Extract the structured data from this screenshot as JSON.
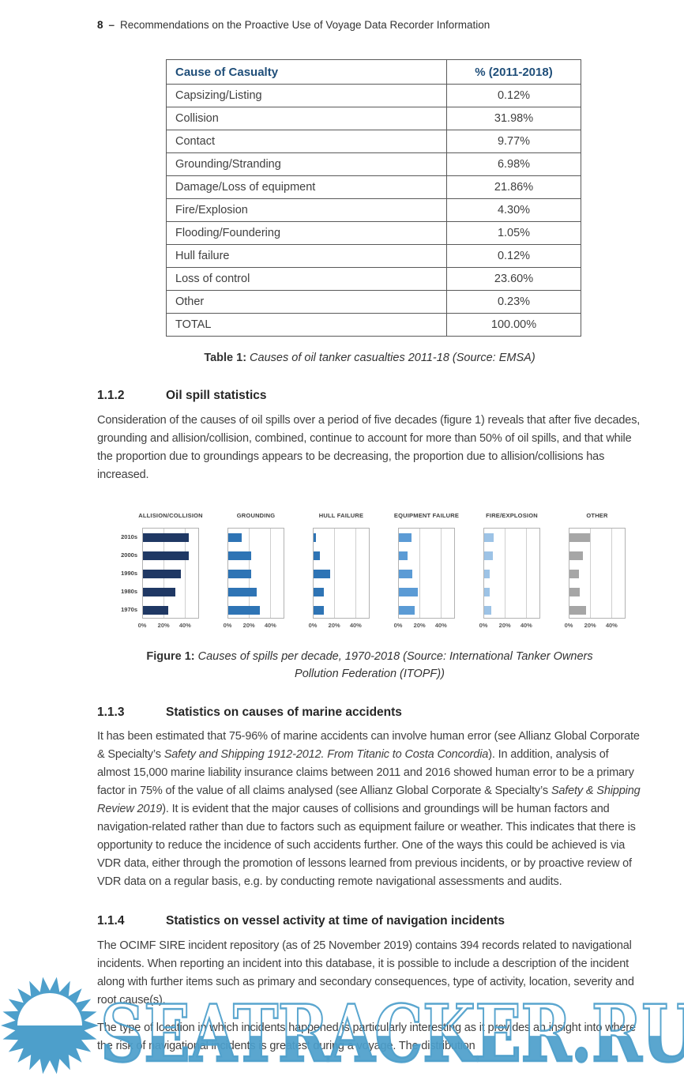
{
  "page": {
    "number": "8",
    "dash": "–",
    "running_title": "Recommendations on the Proactive Use of Voyage Data Recorder Information"
  },
  "table1": {
    "headers": [
      "Cause of Casualty",
      "% (2011-2018)"
    ],
    "header_color": "#1f4e79",
    "rows": [
      [
        "Capsizing/Listing",
        "0.12%"
      ],
      [
        "Collision",
        "31.98%"
      ],
      [
        "Contact",
        "9.77%"
      ],
      [
        "Grounding/Stranding",
        "6.98%"
      ],
      [
        "Damage/Loss of equipment",
        "21.86%"
      ],
      [
        "Fire/Explosion",
        "4.30%"
      ],
      [
        "Flooding/Foundering",
        "1.05%"
      ],
      [
        "Hull failure",
        "0.12%"
      ],
      [
        "Loss of control",
        "23.60%"
      ],
      [
        "Other",
        "0.23%"
      ],
      [
        "TOTAL",
        "100.00%"
      ]
    ],
    "caption_label": "Table 1:",
    "caption_text": " Causes of oil tanker casualties 2011-18 (Source: EMSA)"
  },
  "sections": {
    "s112": {
      "number": "1.1.2",
      "title": "Oil spill statistics",
      "paragraph": "Consideration of the causes of oil spills over a period of five decades (figure 1) reveals that after five decades, grounding and allision/collision, combined, continue to account for more than 50% of oil spills, and that while the proportion due to groundings appears to be decreasing, the proportion due to allision/collisions has increased."
    },
    "s113": {
      "number": "1.1.3",
      "title": "Statistics on causes of marine accidents",
      "paragraph_segments": [
        {
          "text": "It has been estimated that 75-96% of marine accidents can involve human error (see Allianz Global Corporate & Specialty’s ",
          "italic": false
        },
        {
          "text": "Safety and Shipping 1912-2012. From Titanic to Costa Concordia",
          "italic": true
        },
        {
          "text": "). In addition, analysis of almost 15,000 marine liability insurance claims between 2011 and 2016 showed human error to be a primary factor in 75% of the value of all claims analysed (see Allianz Global Corporate & Specialty’s ",
          "italic": false
        },
        {
          "text": "Safety & Shipping Review 2019",
          "italic": true
        },
        {
          "text": "). It is evident that the major causes of collisions and groundings will be human factors and navigation-related rather than due to factors such as equipment failure or weather. This indicates that there is opportunity to reduce the incidence of such accidents further. One of the ways this could be achieved is via VDR data, either through the promotion of lessons learned from previous incidents, or by proactive review of VDR data on a regular basis, e.g. by conducting remote navigational assessments and audits.",
          "italic": false
        }
      ]
    },
    "s114": {
      "number": "1.1.4",
      "title": "Statistics on vessel activity at time of navigation incidents",
      "paragraph1": "The OCIMF SIRE incident repository (as of 25 November 2019) contains 394 records related to navigational incidents. When reporting an incident into this database, it is possible to include a description of the incident along with further items such as primary and secondary consequences, type of activity, location, severity and root cause(s).",
      "paragraph2": "The type of location in which incidents happened is particularly interesting as it provides an insight into where the risk of navigational incidents is greatest during a voyage. The distribution"
    }
  },
  "chart_data": {
    "type": "bar",
    "orientation": "horizontal",
    "categories": [
      "2010s",
      "2000s",
      "1990s",
      "1980s",
      "1970s"
    ],
    "series": [
      {
        "name": "ALLISION/COLLISION",
        "color": "#1f3864",
        "values": [
          44,
          44,
          36,
          31,
          24
        ]
      },
      {
        "name": "GROUNDING",
        "color": "#2e74b5",
        "values": [
          13,
          22,
          22,
          27,
          30
        ]
      },
      {
        "name": "HULL FAILURE",
        "color": "#2e74b5",
        "values": [
          2,
          6,
          16,
          10,
          10
        ]
      },
      {
        "name": "EQUIPMENT FAILURE",
        "color": "#5b9bd5",
        "values": [
          12,
          8,
          13,
          18,
          15
        ]
      },
      {
        "name": "FIRE/EXPLOSION",
        "color": "#9dc3e6",
        "values": [
          9,
          8,
          5,
          5,
          7
        ]
      },
      {
        "name": "OTHER",
        "color": "#a6a6a6",
        "values": [
          20,
          13,
          9,
          10,
          16
        ]
      }
    ],
    "x_ticks": [
      "0%",
      "20%",
      "40%"
    ],
    "gridlines": [
      0,
      20,
      40
    ],
    "xlim": [
      0,
      53
    ],
    "legend": "none",
    "grid": true
  },
  "figure1": {
    "caption_label": "Figure 1:",
    "caption_line1": " Causes of spills per decade, 1970-2018 (Source: International Tanker Owners",
    "caption_line2": "Pollution Federation (ITOPF))"
  },
  "watermark": {
    "text": "SEATRACKER.RU",
    "color": "#4d9fcb",
    "icon": "sun-over-sea-logo"
  }
}
